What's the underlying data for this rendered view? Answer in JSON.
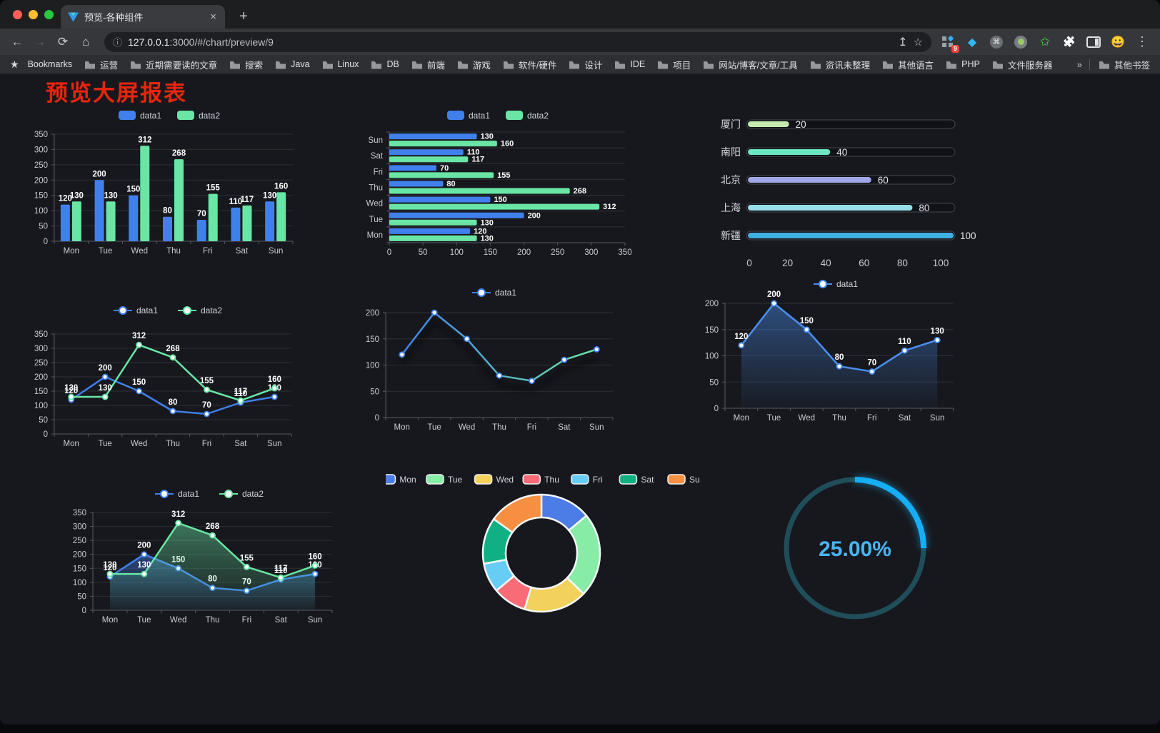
{
  "browser": {
    "tab_title": "预览-各种组件",
    "close_glyph": "×",
    "new_tab_glyph": "+",
    "nav": {
      "back": "←",
      "forward": "→",
      "reload": "⟳",
      "home": "⌂"
    },
    "url": {
      "info": "ⓘ",
      "host": "127.0.0.1",
      "path": ":3000/#/chart/preview/9"
    },
    "actions": {
      "share": "↥",
      "star": "☆",
      "menu": "⋮"
    },
    "extensions": {
      "badge": "9",
      "command": "⌘",
      "diamond": "◆",
      "green_star": "✩",
      "emoji": "😀",
      "puzzle": "🧩"
    },
    "bookmarks": {
      "lead_star": "★",
      "lead": "Bookmarks",
      "items": [
        "运营",
        "近期需要读的文章",
        "搜索",
        "Java",
        "Linux",
        "DB",
        "前端",
        "游戏",
        "软件/硬件",
        "设计",
        "IDE",
        "项目",
        "网站/博客/文章/工具",
        "资讯未整理",
        "其他语言",
        "PHP",
        "文件服务器"
      ],
      "overflow": "»",
      "other": "其他书签"
    }
  },
  "page": {
    "title": "预览大屏报表",
    "title_color": "#e9250e"
  },
  "chart_data": [
    {
      "id": "grouped-bar",
      "type": "bar",
      "categories": [
        "Mon",
        "Tue",
        "Wed",
        "Thu",
        "Fri",
        "Sat",
        "Sun"
      ],
      "series": [
        {
          "name": "data1",
          "color": "#4080ec",
          "values": [
            120,
            200,
            150,
            80,
            70,
            110,
            130
          ]
        },
        {
          "name": "data2",
          "color": "#69e6a5",
          "values": [
            130,
            130,
            312,
            268,
            155,
            117,
            160
          ]
        }
      ],
      "ylim": [
        0,
        350
      ],
      "ytick": 50,
      "value_labels": true,
      "legend_position": "top",
      "grid": true
    },
    {
      "id": "horizontal-bar",
      "type": "bar",
      "orientation": "horizontal",
      "categories": [
        "Mon",
        "Tue",
        "Wed",
        "Thu",
        "Fri",
        "Sat",
        "Sun"
      ],
      "series": [
        {
          "name": "data1",
          "color": "#4080ec",
          "values": [
            120,
            200,
            150,
            80,
            70,
            110,
            130
          ]
        },
        {
          "name": "data2",
          "color": "#69e6a5",
          "values": [
            130,
            130,
            312,
            268,
            155,
            117,
            160
          ]
        }
      ],
      "xlim": [
        0,
        350
      ],
      "xtick": 50,
      "value_labels": true,
      "legend_position": "top",
      "grid": true
    },
    {
      "id": "progress-bars",
      "type": "bar",
      "orientation": "horizontal-progress",
      "items": [
        {
          "label": "厦门",
          "value": 20,
          "color": "#c4ebad"
        },
        {
          "label": "南阳",
          "value": 40,
          "color": "#6be6c1"
        },
        {
          "label": "北京",
          "value": 60,
          "color": "#a0a7e6"
        },
        {
          "label": "上海",
          "value": 80,
          "color": "#96dee8"
        },
        {
          "label": "新疆",
          "value": 100,
          "color": "#3fb1e3"
        }
      ],
      "xlim": [
        0,
        100
      ],
      "xtick": 20
    },
    {
      "id": "line-two-series",
      "type": "line",
      "categories": [
        "Mon",
        "Tue",
        "Wed",
        "Thu",
        "Fri",
        "Sat",
        "Sun"
      ],
      "series": [
        {
          "name": "data1",
          "color": "#4080ec",
          "values": [
            120,
            200,
            150,
            80,
            70,
            110,
            130
          ]
        },
        {
          "name": "data2",
          "color": "#69e6a5",
          "values": [
            130,
            130,
            312,
            268,
            155,
            117,
            160
          ]
        }
      ],
      "ylim": [
        0,
        350
      ],
      "ytick": 50,
      "value_labels": true,
      "area": false,
      "legend_position": "top",
      "grid": true
    },
    {
      "id": "line-gradient",
      "type": "line",
      "categories": [
        "Mon",
        "Tue",
        "Wed",
        "Thu",
        "Fri",
        "Sat",
        "Sun"
      ],
      "series": [
        {
          "name": "data1",
          "gradient": true,
          "color_start": "#4080ec",
          "color_end": "#69e6a5",
          "values": [
            120,
            200,
            150,
            80,
            70,
            110,
            130
          ]
        }
      ],
      "ylim": [
        0,
        200
      ],
      "ytick": 50,
      "value_labels": false,
      "area": false,
      "shadow": true,
      "legend_position": "top",
      "grid": true
    },
    {
      "id": "area-single",
      "type": "area",
      "categories": [
        "Mon",
        "Tue",
        "Wed",
        "Thu",
        "Fri",
        "Sat",
        "Sun"
      ],
      "series": [
        {
          "name": "data1",
          "color": "#4a90f2",
          "values": [
            120,
            200,
            150,
            80,
            70,
            110,
            130
          ]
        }
      ],
      "ylim": [
        0,
        200
      ],
      "ytick": 50,
      "value_labels": true,
      "area": true,
      "legend_position": "top",
      "grid": true
    },
    {
      "id": "area-two-series",
      "type": "area",
      "categories": [
        "Mon",
        "Tue",
        "Wed",
        "Thu",
        "Fri",
        "Sat",
        "Sun"
      ],
      "series": [
        {
          "name": "data1",
          "color": "#4080ec",
          "values": [
            120,
            200,
            150,
            80,
            70,
            110,
            130
          ]
        },
        {
          "name": "data2",
          "color": "#69e6a5",
          "values": [
            130,
            130,
            312,
            268,
            155,
            117,
            160
          ]
        }
      ],
      "ylim": [
        0,
        350
      ],
      "ytick": 50,
      "value_labels": true,
      "area": true,
      "legend_position": "top",
      "grid": true
    },
    {
      "id": "donut",
      "type": "pie",
      "categories": [
        "Mon",
        "Tue",
        "Wed",
        "Thu",
        "Fri",
        "Sat",
        "Sun"
      ],
      "values": [
        120,
        200,
        150,
        80,
        70,
        110,
        130
      ],
      "colors": [
        "#4c7de6",
        "#86eca6",
        "#f2d15c",
        "#f96c77",
        "#67cdf5",
        "#0fb183",
        "#f78f42"
      ],
      "inner_radius_ratio": 0.6,
      "legend_position": "top"
    },
    {
      "id": "gauge",
      "type": "gauge",
      "value": 25,
      "label": "25.00%",
      "color": "#16aef5",
      "track_color": "#1f4e5a",
      "text_color": "#49b5f3"
    }
  ]
}
